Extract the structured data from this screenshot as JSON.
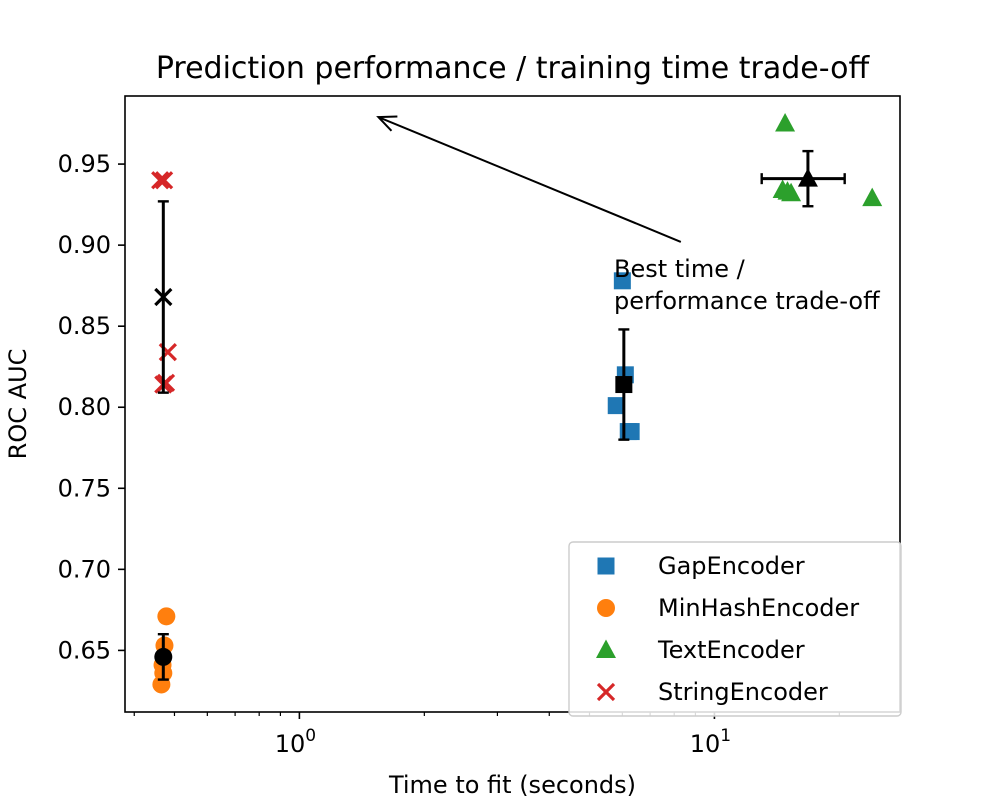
{
  "chart_data": {
    "type": "scatter",
    "title": "Prediction performance / training time trade-off",
    "xlabel": "Time to fit (seconds)",
    "ylabel": "ROC AUC",
    "xscale": "log",
    "xlim": [
      0.38,
      28
    ],
    "ylim": [
      0.612,
      0.992
    ],
    "x_ticks": [
      {
        "value": 1,
        "base": "10",
        "exp": "0"
      },
      {
        "value": 10,
        "base": "10",
        "exp": "1"
      }
    ],
    "y_ticks": [
      "0.65",
      "0.70",
      "0.75",
      "0.80",
      "0.85",
      "0.90",
      "0.95"
    ],
    "grid": false,
    "legend_position": "lower-right",
    "series": [
      {
        "name": "GapEncoder",
        "color": "#1f77b4",
        "marker": "square",
        "x": [
          6.0,
          6.1,
          5.8,
          6.2,
          6.3
        ],
        "y": [
          0.878,
          0.82,
          0.801,
          0.785,
          0.785
        ],
        "mean": {
          "x": 6.05,
          "y": 0.814,
          "xerr": 0.0,
          "yerr": 0.034
        }
      },
      {
        "name": "MinHashEncoder",
        "color": "#ff7f0e",
        "marker": "circle",
        "x": [
          0.478,
          0.473,
          0.468,
          0.47,
          0.465
        ],
        "y": [
          0.671,
          0.653,
          0.641,
          0.636,
          0.629
        ],
        "mean": {
          "x": 0.47,
          "y": 0.646,
          "xerr": 0.0,
          "yerr": 0.014
        }
      },
      {
        "name": "TextEncoder",
        "color": "#2ca02c",
        "marker": "triangle",
        "x": [
          14.8,
          14.6,
          15.3,
          24.0,
          15.0
        ],
        "y": [
          0.975,
          0.934,
          0.932,
          0.929,
          0.933
        ],
        "mean": {
          "x": 16.8,
          "y": 0.941,
          "xerr": 3.8,
          "yerr": 0.017
        }
      },
      {
        "name": "StringEncoder",
        "color": "#d62728",
        "marker": "x",
        "x": [
          0.462,
          0.472,
          0.482,
          0.477,
          0.47
        ],
        "y": [
          0.94,
          0.94,
          0.834,
          0.815,
          0.814
        ],
        "mean": {
          "x": 0.47,
          "y": 0.868,
          "xerr": 0.0,
          "yerr": 0.059
        }
      }
    ],
    "annotation": {
      "text_lines": [
        "Best time /",
        "performance trade-off"
      ],
      "arrow_from": {
        "x": 8.3,
        "y": 0.902
      },
      "arrow_to": {
        "x": 1.55,
        "y": 0.979
      }
    }
  }
}
